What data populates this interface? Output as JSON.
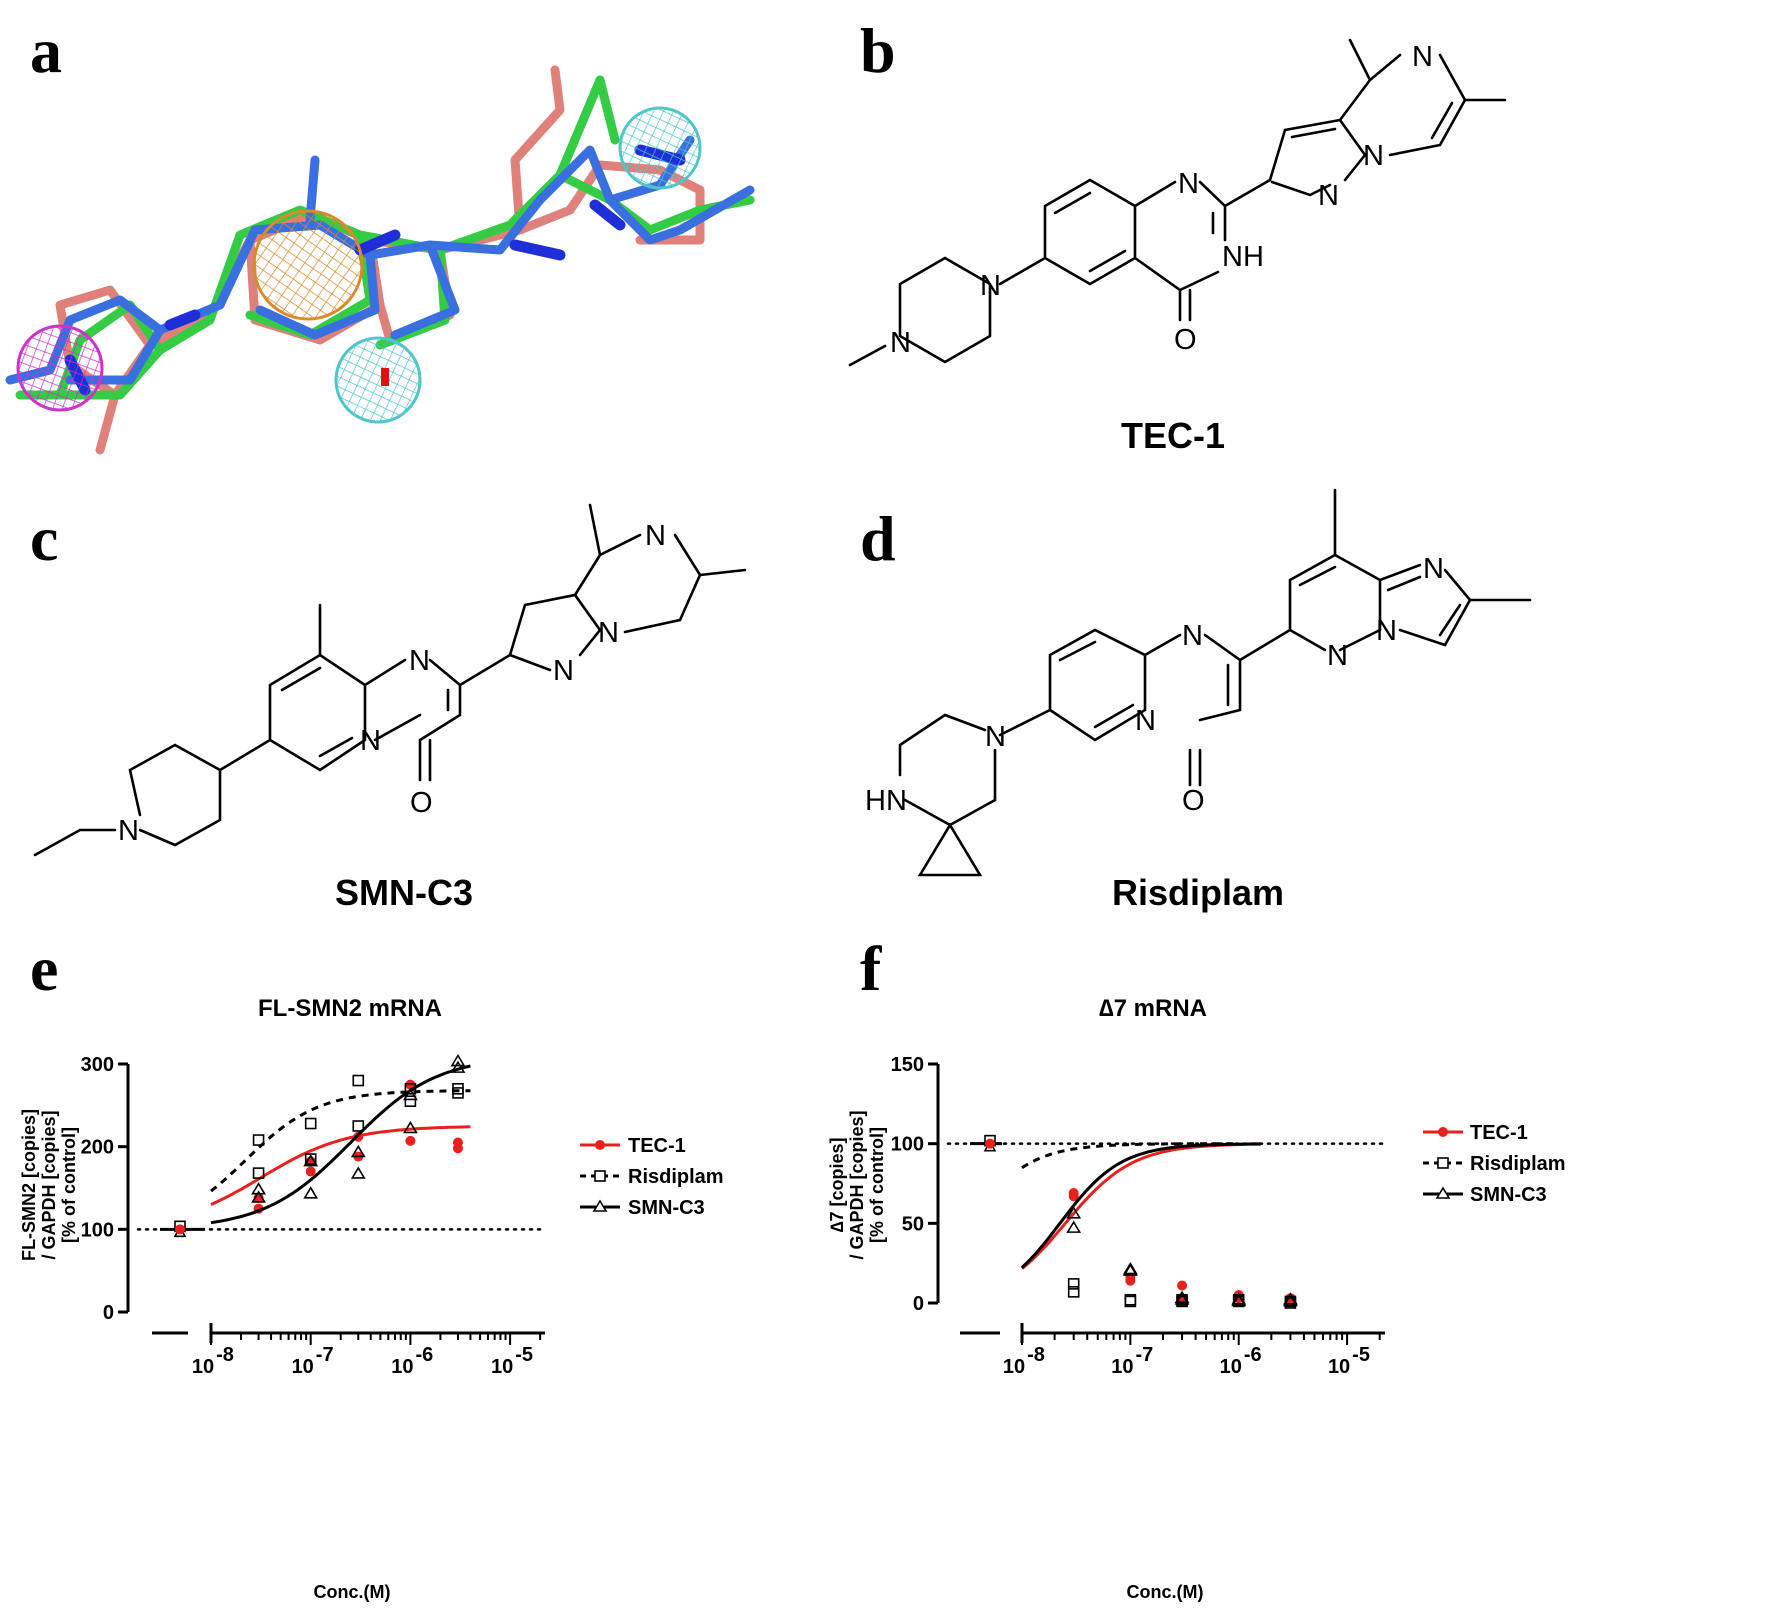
{
  "panels": {
    "a": "a",
    "b": "b",
    "c": "c",
    "d": "d",
    "e": "e",
    "f": "f"
  },
  "colors": {
    "tec1": "#e8201e",
    "risdiplam": "#000000",
    "smnc3": "#000000",
    "overlay_green": "#33cc44",
    "overlay_blue": "#3a6fe0",
    "overlay_salmon": "#e0807a",
    "sphere_orange": "#d98a2b",
    "sphere_cyan": "#4fc6cc",
    "sphere_magenta": "#cc33cc"
  },
  "compounds": {
    "b_name": "TEC-1",
    "c_name": "SMN-C3",
    "d_name": "Risdiplam"
  },
  "atoms": {
    "N": "N",
    "O": "O",
    "NH": "NH",
    "HN": "HN"
  },
  "chart_data": [
    {
      "panel": "e",
      "type": "line",
      "title": "FL-SMN2 mRNA",
      "xlabel": "Conc.(M)",
      "ylabel": [
        "FL-SMN2 [copies]",
        "/ GAPDH [copies]",
        "[% of control]"
      ],
      "xscale": "log",
      "xlim": [
        3e-09,
        5e-05
      ],
      "ylim": [
        0,
        300
      ],
      "yticks": [
        0,
        100,
        200,
        300
      ],
      "xtick_labels": [
        {
          "base": "10",
          "exp": "-8"
        },
        {
          "base": "10",
          "exp": "-7"
        },
        {
          "base": "10",
          "exp": "-6"
        },
        {
          "base": "10",
          "exp": "-5"
        }
      ],
      "reference_line": 100,
      "control_value": 100,
      "legend": [
        "TEC-1",
        "Risdiplam",
        "SMN-C3"
      ],
      "series": [
        {
          "name": "TEC-1",
          "marker": "filled-circle",
          "line": "solid",
          "color": "#e8201e",
          "points": [
            [
              3e-08,
              125
            ],
            [
              3e-08,
              138
            ],
            [
              1e-07,
              170
            ],
            [
              1e-07,
              182
            ],
            [
              3e-07,
              188
            ],
            [
              3e-07,
              212
            ],
            [
              1e-06,
              207
            ],
            [
              1e-06,
              275
            ],
            [
              3e-06,
              198
            ],
            [
              3e-06,
              205
            ]
          ],
          "fit": {
            "bottom": 100,
            "top": 225,
            "logEC50": -7.5,
            "hill": 1.0,
            "from": 1e-08,
            "to": 4e-06
          }
        },
        {
          "name": "Risdiplam",
          "marker": "open-square",
          "line": "dashed",
          "color": "#000000",
          "points": [
            [
              3e-08,
              168
            ],
            [
              3e-08,
              208
            ],
            [
              1e-07,
              185
            ],
            [
              1e-07,
              228
            ],
            [
              3e-07,
              225
            ],
            [
              3e-07,
              280
            ],
            [
              1e-06,
              255
            ],
            [
              1e-06,
              270
            ],
            [
              3e-06,
              265
            ],
            [
              3e-06,
              270
            ]
          ],
          "fit": {
            "bottom": 100,
            "top": 268,
            "logEC50": -7.65,
            "hill": 1.2,
            "from": 1e-08,
            "to": 4e-06
          }
        },
        {
          "name": "SMN-C3",
          "marker": "open-triangle",
          "line": "solid",
          "color": "#000000",
          "points": [
            [
              3e-08,
              138
            ],
            [
              3e-08,
              148
            ],
            [
              1e-07,
              143
            ],
            [
              1e-07,
              182
            ],
            [
              3e-07,
              167
            ],
            [
              3e-07,
              193
            ],
            [
              1e-06,
              222
            ],
            [
              1e-06,
              262
            ],
            [
              3e-06,
              295
            ],
            [
              3e-06,
              303
            ]
          ],
          "fit": {
            "bottom": 100,
            "top": 310,
            "logEC50": -6.6,
            "hill": 1.0,
            "from": 1e-08,
            "to": 4e-06
          }
        }
      ]
    },
    {
      "panel": "f",
      "type": "line",
      "title": "∆7 mRNA",
      "xlabel": "Conc.(M)",
      "ylabel": [
        "∆7 [copies]",
        "/ GAPDH [copies]",
        "[% of control]"
      ],
      "xscale": "log",
      "xlim": [
        3e-09,
        5e-05
      ],
      "ylim": [
        0,
        150
      ],
      "yticks": [
        0,
        50,
        100,
        150
      ],
      "xtick_labels": [
        {
          "base": "10",
          "exp": "-8"
        },
        {
          "base": "10",
          "exp": "-7"
        },
        {
          "base": "10",
          "exp": "-6"
        },
        {
          "base": "10",
          "exp": "-5"
        }
      ],
      "reference_line": 100,
      "control_value": 100,
      "legend": [
        "TEC-1",
        "Risdiplam",
        "SMN-C3"
      ],
      "series": [
        {
          "name": "TEC-1",
          "marker": "filled-circle",
          "line": "solid",
          "color": "#e8201e",
          "points": [
            [
              3e-08,
              67
            ],
            [
              3e-08,
              69
            ],
            [
              1e-07,
              14
            ],
            [
              1e-07,
              16
            ],
            [
              3e-07,
              11
            ],
            [
              3e-07,
              3
            ],
            [
              1e-06,
              3
            ],
            [
              1e-06,
              5
            ],
            [
              3e-06,
              1
            ],
            [
              3e-06,
              3
            ]
          ],
          "fit": {
            "bottom": 0,
            "top": 100,
            "logEC50": -7.6,
            "hill": 1.4,
            "from": 1e-08,
            "to": 1.6e-06
          }
        },
        {
          "name": "Risdiplam",
          "marker": "open-square",
          "line": "dashed",
          "color": "#000000",
          "points": [
            [
              3e-08,
              7
            ],
            [
              3e-08,
              12
            ],
            [
              1e-07,
              1
            ],
            [
              1e-07,
              2
            ],
            [
              3e-07,
              1
            ],
            [
              3e-07,
              2
            ],
            [
              1e-06,
              1
            ],
            [
              1e-06,
              2
            ],
            [
              3e-06,
              0
            ],
            [
              3e-06,
              1
            ]
          ],
          "fit": {
            "bottom": 0,
            "top": 100,
            "logEC50": -8.5,
            "hill": 1.5,
            "from": 1e-08,
            "to": 1e-06
          }
        },
        {
          "name": "SMN-C3",
          "marker": "open-triangle",
          "line": "solid",
          "color": "#000000",
          "points": [
            [
              3e-08,
              47
            ],
            [
              3e-08,
              56
            ],
            [
              1e-07,
              20
            ],
            [
              1e-07,
              21
            ],
            [
              3e-07,
              2
            ],
            [
              3e-07,
              3
            ],
            [
              1e-06,
              1
            ],
            [
              1e-06,
              2
            ],
            [
              3e-06,
              1
            ],
            [
              3e-06,
              2
            ]
          ],
          "fit": {
            "bottom": 0,
            "top": 100,
            "logEC50": -7.65,
            "hill": 1.55,
            "from": 1e-08,
            "to": 1.6e-06
          }
        }
      ]
    }
  ]
}
